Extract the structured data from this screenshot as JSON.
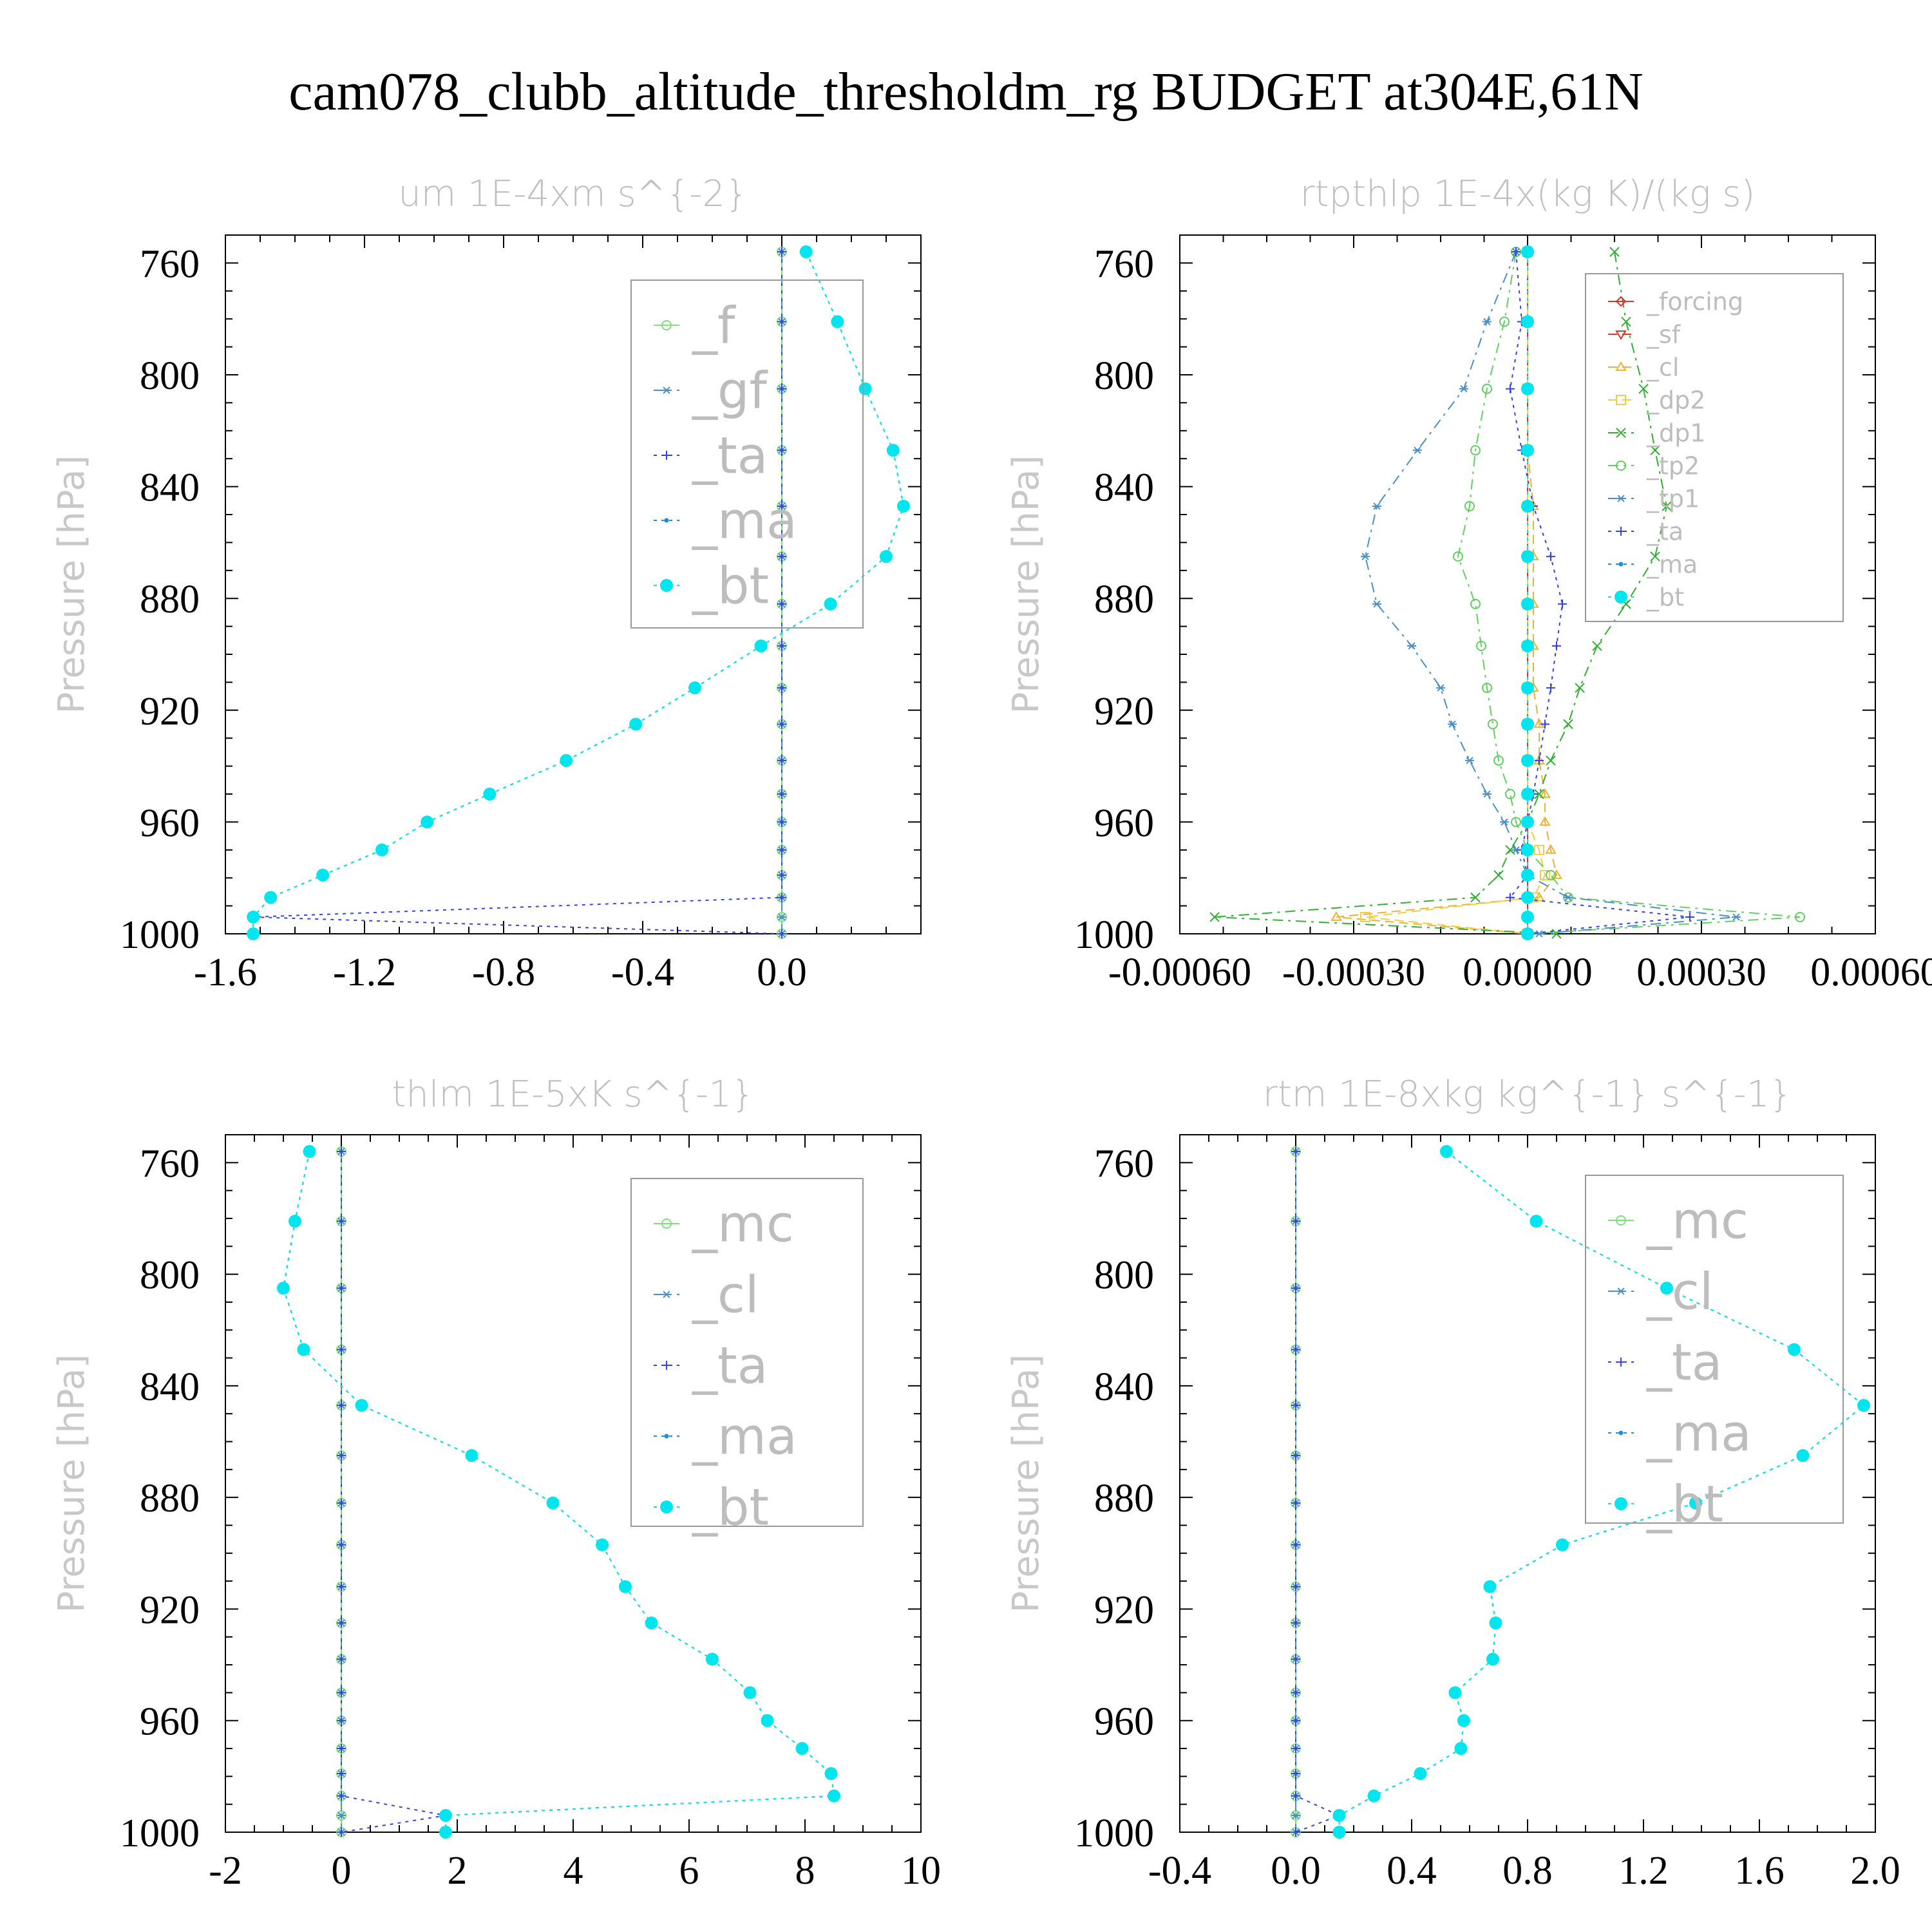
{
  "title": "cam078_clubb_altitude_thresholdm_rg  BUDGET at304E,61N",
  "colors": {
    "f": "#7ee07e",
    "gf": "#4a90c8",
    "ta": "#3344dd",
    "ma": "#1a8fe0",
    "bt": "#00e5ee",
    "mc": "#7ee07e",
    "cl": "#4a90c8",
    "forcing": "#e03030",
    "sf": "#e03030",
    "cl_rtp": "#f0b030",
    "dp2": "#f0d040",
    "dp1": "#30b030",
    "tp2": "#60d060",
    "tp1": "#4a90c8"
  },
  "chart_data": [
    {
      "type": "line",
      "panel": "um",
      "title": "um   1E-4xm s^{-2}",
      "ylabel": "Pressure [hPa]",
      "xlim": [
        -1.6,
        0.4
      ],
      "ylim": [
        1000,
        750
      ],
      "xticks": [
        -1.6,
        -1.2,
        -0.8,
        -0.4,
        0.0
      ],
      "xtick_labels": [
        "-1.6",
        "-1.2",
        "-0.8",
        "-0.4",
        "0.0"
      ],
      "yticks": [
        760,
        800,
        840,
        880,
        920,
        960,
        1000
      ],
      "ytick_labels": [
        "760",
        "800",
        "840",
        "880",
        "920",
        "960",
        "1000"
      ],
      "legend": [
        "_f",
        "_gf",
        "_ta",
        "_ma",
        "_bt"
      ],
      "legend_position": "top-right",
      "levels": [
        756,
        781,
        805,
        827,
        847,
        865,
        882,
        897,
        912,
        925,
        938,
        950,
        960,
        970,
        979,
        987,
        994,
        1000
      ],
      "series": [
        {
          "name": "_f",
          "key": "f",
          "style": "solid",
          "marker": "circle-open",
          "values": [
            0,
            0,
            0,
            0,
            0,
            0,
            0,
            0,
            0,
            0,
            0,
            0,
            0,
            0,
            0,
            0,
            0,
            0
          ]
        },
        {
          "name": "_gf",
          "key": "gf",
          "style": "dashdot",
          "marker": "star",
          "values": [
            0,
            0,
            0,
            0,
            0,
            0,
            0,
            0,
            0,
            0,
            0,
            0,
            0,
            0,
            0,
            0,
            0,
            0
          ]
        },
        {
          "name": "_ta",
          "key": "ta",
          "style": "dotted",
          "marker": "plus",
          "values": [
            0,
            0,
            0,
            0,
            0,
            0,
            0,
            0,
            0,
            0,
            0,
            0,
            0,
            0,
            0,
            0,
            -1.52,
            0
          ]
        },
        {
          "name": "_ma",
          "key": "ma",
          "style": "dotted",
          "marker": "dot",
          "values": [
            0.07,
            0.16,
            0.24,
            0.32,
            0.35,
            0.3,
            0.14,
            -0.06,
            -0.25,
            -0.42,
            -0.62,
            -0.84,
            -1.02,
            -1.15,
            -1.32,
            -1.47,
            -1.52,
            -1.52
          ]
        },
        {
          "name": "_bt",
          "key": "bt",
          "style": "dotted",
          "marker": "filled",
          "values": [
            0.07,
            0.16,
            0.24,
            0.32,
            0.35,
            0.3,
            0.14,
            -0.06,
            -0.25,
            -0.42,
            -0.62,
            -0.84,
            -1.02,
            -1.15,
            -1.32,
            -1.47,
            -1.52,
            -1.52
          ]
        }
      ]
    },
    {
      "type": "line",
      "panel": "rtpthlp",
      "title": "rtpthlp   1E-4x(kg K)/(kg s)",
      "ylabel": "Pressure [hPa]",
      "xlim": [
        -0.0006,
        0.0006
      ],
      "ylim": [
        1000,
        750
      ],
      "xticks": [
        -0.0006,
        -0.0003,
        0.0,
        0.0003,
        0.0006
      ],
      "xtick_labels": [
        "-0.00060",
        "-0.00030",
        "0.00000",
        "0.00030",
        "0.00060"
      ],
      "yticks": [
        760,
        800,
        840,
        880,
        920,
        960,
        1000
      ],
      "ytick_labels": [
        "760",
        "800",
        "840",
        "880",
        "920",
        "960",
        "1000"
      ],
      "legend": [
        "_forcing",
        "_sf",
        "_cl",
        "_dp2",
        "_dp1",
        "_tp2",
        "_tp1",
        "_ta",
        "_ma",
        "_bt"
      ],
      "legend_position": "top-right",
      "levels": [
        756,
        781,
        805,
        827,
        847,
        865,
        882,
        897,
        912,
        925,
        938,
        950,
        960,
        970,
        979,
        987,
        994,
        1000
      ],
      "series": [
        {
          "name": "_forcing",
          "key": "forcing",
          "style": "solid",
          "marker": "diamond",
          "values": [
            0,
            0,
            0,
            0,
            0,
            0,
            0,
            0,
            0,
            0,
            0,
            0,
            0,
            0,
            0,
            0,
            0,
            0
          ]
        },
        {
          "name": "_sf",
          "key": "sf",
          "style": "dashed",
          "marker": "triangle-down",
          "values": [
            0,
            0,
            0,
            0,
            0,
            0,
            0,
            0,
            0,
            0,
            0,
            0,
            0,
            0,
            0,
            0,
            0,
            0
          ]
        },
        {
          "name": "_cl",
          "key": "cl_rtp",
          "style": "dashed",
          "marker": "triangle",
          "values": [
            0,
            0,
            0,
            0,
            1e-05,
            1e-05,
            1e-05,
            1e-05,
            1e-05,
            2e-05,
            2e-05,
            3e-05,
            3e-05,
            4e-05,
            5e-05,
            2e-05,
            -0.00033,
            0
          ]
        },
        {
          "name": "_dp2",
          "key": "dp2",
          "style": "dashed",
          "marker": "square",
          "values": [
            0,
            0,
            0,
            0,
            0,
            0,
            0,
            0,
            0,
            0,
            0,
            0,
            0,
            2e-05,
            3e-05,
            1e-05,
            -0.00028,
            0
          ]
        },
        {
          "name": "_dp1",
          "key": "dp1",
          "style": "dashdot",
          "marker": "x",
          "values": [
            0.00015,
            0.00017,
            0.0002,
            0.00022,
            0.00024,
            0.00022,
            0.00017,
            0.00012,
            9e-05,
            7e-05,
            4e-05,
            2e-05,
            0,
            -3e-05,
            -5e-05,
            -9e-05,
            -0.00054,
            5e-05
          ]
        },
        {
          "name": "_tp2",
          "key": "tp2",
          "style": "dashdot",
          "marker": "circle-open",
          "values": [
            -2e-05,
            -4e-05,
            -7e-05,
            -9e-05,
            -0.0001,
            -0.00012,
            -9e-05,
            -8e-05,
            -7e-05,
            -6e-05,
            -5e-05,
            -3e-05,
            -2e-05,
            0,
            4e-05,
            7e-05,
            0.00047,
            0
          ]
        },
        {
          "name": "_tp1",
          "key": "tp1",
          "style": "dashdot",
          "marker": "star",
          "values": [
            -2e-05,
            -7e-05,
            -0.00011,
            -0.00019,
            -0.00026,
            -0.00028,
            -0.00026,
            -0.0002,
            -0.00015,
            -0.00013,
            -0.0001,
            -7e-05,
            -4e-05,
            -2e-05,
            0,
            7e-05,
            0.00036,
            2e-05
          ]
        },
        {
          "name": "_ta",
          "key": "ta",
          "style": "dotted",
          "marker": "plus",
          "values": [
            -2e-05,
            -1e-05,
            -3e-05,
            -1e-05,
            1e-05,
            4e-05,
            6e-05,
            5e-05,
            4e-05,
            3e-05,
            2e-05,
            1e-05,
            0,
            -1e-05,
            0,
            -3e-05,
            0.00028,
            0
          ]
        },
        {
          "name": "_ma",
          "key": "ma",
          "style": "dotted",
          "marker": "dot",
          "values": [
            0,
            0,
            0,
            0,
            0,
            0,
            0,
            0,
            0,
            0,
            0,
            0,
            0,
            0,
            0,
            0,
            0,
            0
          ]
        },
        {
          "name": "_bt",
          "key": "bt",
          "style": "dotted",
          "marker": "filled",
          "values": [
            0,
            0,
            0,
            0,
            0,
            0,
            0,
            0,
            0,
            0,
            0,
            0,
            0,
            0,
            0,
            0,
            0,
            0
          ]
        }
      ]
    },
    {
      "type": "line",
      "panel": "thlm",
      "title": "thlm   1E-5xK s^{-1}",
      "ylabel": "Pressure [hPa]",
      "xlim": [
        -2,
        10
      ],
      "ylim": [
        1000,
        750
      ],
      "xticks": [
        -2,
        0,
        2,
        4,
        6,
        8,
        10
      ],
      "xtick_labels": [
        "-2",
        "0",
        "2",
        "4",
        "6",
        "8",
        "10"
      ],
      "yticks": [
        760,
        800,
        840,
        880,
        920,
        960,
        1000
      ],
      "ytick_labels": [
        "760",
        "800",
        "840",
        "880",
        "920",
        "960",
        "1000"
      ],
      "legend": [
        "_mc",
        "_cl",
        "_ta",
        "_ma",
        "_bt"
      ],
      "legend_position": "top-right",
      "levels": [
        756,
        781,
        805,
        827,
        847,
        865,
        882,
        897,
        912,
        925,
        938,
        950,
        960,
        970,
        979,
        987,
        994,
        1000
      ],
      "series": [
        {
          "name": "_mc",
          "key": "mc",
          "style": "solid",
          "marker": "circle-open",
          "values": [
            0,
            0,
            0,
            0,
            0,
            0,
            0,
            0,
            0,
            0,
            0,
            0,
            0,
            0,
            0,
            0,
            0,
            0
          ]
        },
        {
          "name": "_cl",
          "key": "cl",
          "style": "dashdot",
          "marker": "star",
          "values": [
            0,
            0,
            0,
            0,
            0,
            0,
            0,
            0,
            0,
            0,
            0,
            0,
            0,
            0,
            0,
            0,
            0,
            0
          ]
        },
        {
          "name": "_ta",
          "key": "ta",
          "style": "dotted",
          "marker": "plus",
          "values": [
            0,
            0,
            0,
            0,
            0,
            0,
            0,
            0,
            0,
            0,
            0,
            0,
            0,
            0,
            0,
            0,
            1.8,
            0
          ]
        },
        {
          "name": "_ma",
          "key": "ma",
          "style": "dotted",
          "marker": "dot",
          "values": [
            -0.55,
            -0.8,
            -1.0,
            -0.65,
            0.35,
            2.25,
            3.65,
            4.5,
            4.9,
            5.35,
            6.4,
            7.05,
            7.35,
            7.95,
            8.45,
            8.5,
            1.8,
            1.8
          ]
        },
        {
          "name": "_bt",
          "key": "bt",
          "style": "dotted",
          "marker": "filled",
          "values": [
            -0.55,
            -0.8,
            -1.0,
            -0.65,
            0.35,
            2.25,
            3.65,
            4.5,
            4.9,
            5.35,
            6.4,
            7.05,
            7.35,
            7.95,
            8.45,
            8.5,
            1.8,
            1.8
          ]
        }
      ]
    },
    {
      "type": "line",
      "panel": "rtm",
      "title": "rtm   1E-8xkg kg^{-1} s^{-1}",
      "ylabel": "Pressure [hPa]",
      "xlim": [
        -0.4,
        2.0
      ],
      "ylim": [
        1000,
        750
      ],
      "xticks": [
        -0.4,
        0.0,
        0.4,
        0.8,
        1.2,
        1.6,
        2.0
      ],
      "xtick_labels": [
        "-0.4",
        "0.0",
        "0.4",
        "0.8",
        "1.2",
        "1.6",
        "2.0"
      ],
      "yticks": [
        760,
        800,
        840,
        880,
        920,
        960,
        1000
      ],
      "ytick_labels": [
        "760",
        "800",
        "840",
        "880",
        "920",
        "960",
        "1000"
      ],
      "legend": [
        "_mc",
        "_cl",
        "_ta",
        "_ma",
        "_bt"
      ],
      "legend_position": "top-right",
      "levels": [
        756,
        781,
        805,
        827,
        847,
        865,
        882,
        897,
        912,
        925,
        938,
        950,
        960,
        970,
        979,
        987,
        994,
        1000
      ],
      "series": [
        {
          "name": "_mc",
          "key": "mc",
          "style": "solid",
          "marker": "circle-open",
          "values": [
            0,
            0,
            0,
            0,
            0,
            0,
            0,
            0,
            0,
            0,
            0,
            0,
            0,
            0,
            0,
            0,
            0,
            0
          ]
        },
        {
          "name": "_cl",
          "key": "cl",
          "style": "dashdot",
          "marker": "star",
          "values": [
            0,
            0,
            0,
            0,
            0,
            0,
            0,
            0,
            0,
            0,
            0,
            0,
            0,
            0,
            0,
            0,
            0,
            0
          ]
        },
        {
          "name": "_ta",
          "key": "ta",
          "style": "dotted",
          "marker": "plus",
          "values": [
            0,
            0,
            0,
            0,
            0,
            0,
            0,
            0,
            0,
            0,
            0,
            0,
            0,
            0,
            0,
            0,
            0.15,
            0
          ]
        },
        {
          "name": "_ma",
          "key": "ma",
          "style": "dotted",
          "marker": "dot",
          "values": [
            0.52,
            0.83,
            1.28,
            1.72,
            1.96,
            1.75,
            1.38,
            0.92,
            0.67,
            0.69,
            0.68,
            0.55,
            0.58,
            0.57,
            0.43,
            0.27,
            0.15,
            0.15
          ]
        },
        {
          "name": "_bt",
          "key": "bt",
          "style": "dotted",
          "marker": "filled",
          "values": [
            0.52,
            0.83,
            1.28,
            1.72,
            1.96,
            1.75,
            1.38,
            0.92,
            0.67,
            0.69,
            0.68,
            0.55,
            0.58,
            0.57,
            0.43,
            0.27,
            0.15,
            0.15
          ]
        }
      ]
    }
  ]
}
